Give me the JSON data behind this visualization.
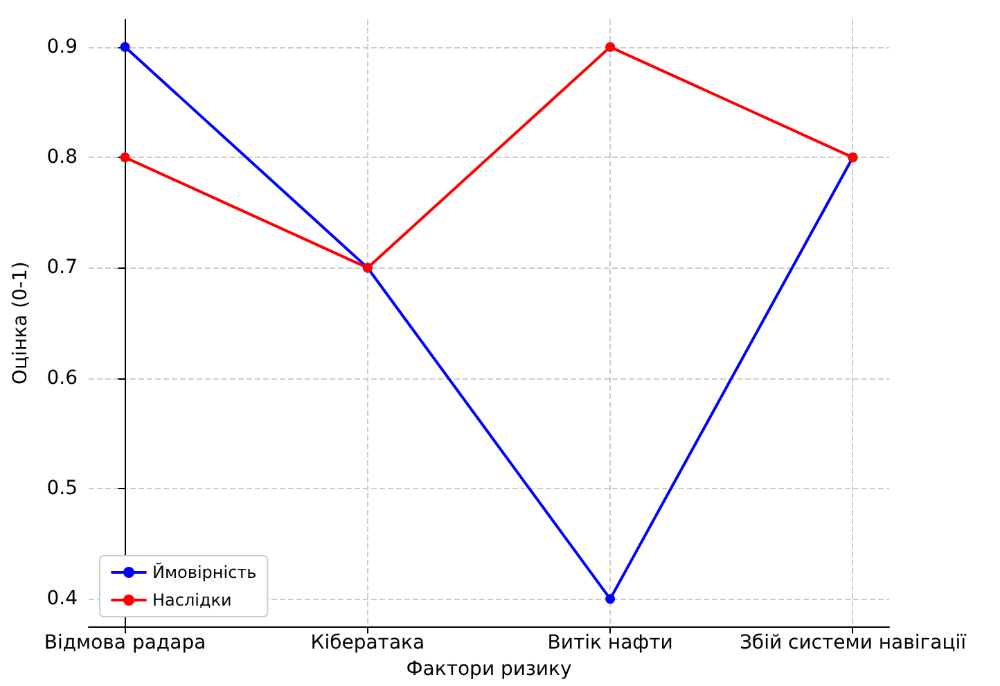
{
  "chart_data": {
    "type": "line",
    "xlabel": "Фактори ризику",
    "ylabel": "Оцінка (0-1)",
    "categories": [
      "Відмова радара",
      "Кібератака",
      "Витік нафти",
      "Збій системи навігації"
    ],
    "series": [
      {
        "name": "Ймовірність",
        "color": "#0000ff",
        "values": [
          0.9,
          0.7,
          0.4,
          0.8
        ]
      },
      {
        "name": "Наслідки",
        "color": "#ff0000",
        "values": [
          0.8,
          0.7,
          0.9,
          0.8
        ]
      }
    ],
    "ylim": [
      0.375,
      0.925
    ],
    "yticks": [
      0.4,
      0.5,
      0.6,
      0.7,
      0.8,
      0.9
    ],
    "grid": true,
    "legend": "bottom left",
    "marker": "circle",
    "line_style": "solid"
  }
}
